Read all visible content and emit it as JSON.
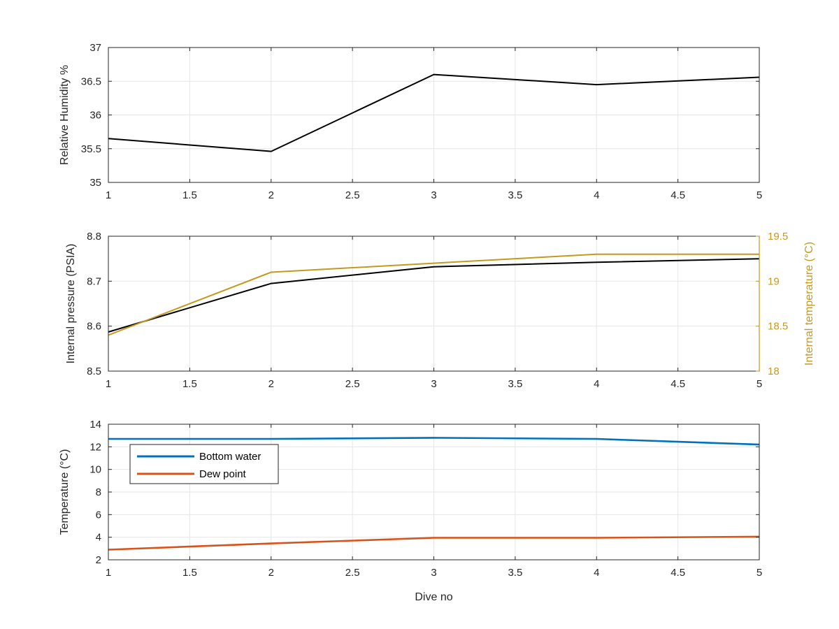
{
  "chart_data": [
    {
      "type": "line",
      "x": [
        1,
        2,
        3,
        4,
        5
      ],
      "xlim": [
        1,
        5
      ],
      "xticks": [
        "1",
        "1.5",
        "2",
        "2.5",
        "3",
        "3.5",
        "4",
        "4.5",
        "5"
      ],
      "xlabel": "",
      "ylabel": "Relative Humidity %",
      "ylim": [
        35,
        37
      ],
      "yticks": [
        "35",
        "35.5",
        "36",
        "36.5",
        "37"
      ],
      "grid": true,
      "series": [
        {
          "values": [
            35.65,
            35.46,
            36.6,
            36.45,
            36.56
          ],
          "color": "#000000"
        }
      ]
    },
    {
      "type": "line",
      "x": [
        1,
        2,
        3,
        4,
        5
      ],
      "xlim": [
        1,
        5
      ],
      "xticks": [
        "1",
        "1.5",
        "2",
        "2.5",
        "3",
        "3.5",
        "4",
        "4.5",
        "5"
      ],
      "xlabel": "",
      "ylabel": "Internal pressure (PSIA)",
      "ylim": [
        8.5,
        8.8
      ],
      "yticks": [
        "8.5",
        "8.6",
        "8.7",
        "8.8"
      ],
      "ylabel_right": "Internal temperature (°C)",
      "ylim_right": [
        18,
        19.5
      ],
      "yticks_right": [
        "18",
        "18.5",
        "19",
        "19.5"
      ],
      "right_axis_color": "#C49A1D",
      "grid": true,
      "series": [
        {
          "axis": "left",
          "values": [
            8.587,
            8.695,
            8.732,
            8.742,
            8.75
          ],
          "color": "#000000"
        },
        {
          "axis": "right",
          "values": [
            18.4,
            19.1,
            19.2,
            19.3,
            19.3
          ],
          "color": "#C49A1D"
        }
      ]
    },
    {
      "type": "line",
      "x": [
        1,
        2,
        3,
        4,
        5
      ],
      "xlim": [
        1,
        5
      ],
      "xticks": [
        "1",
        "1.5",
        "2",
        "2.5",
        "3",
        "3.5",
        "4",
        "4.5",
        "5"
      ],
      "xlabel": "Dive no",
      "ylabel": "Temperature (°C)",
      "ylim": [
        2,
        14
      ],
      "yticks": [
        "2",
        "4",
        "6",
        "8",
        "10",
        "12",
        "14"
      ],
      "grid": true,
      "legend_placement": "top-left",
      "series": [
        {
          "name": "Bottom water",
          "values": [
            12.7,
            12.7,
            12.8,
            12.7,
            12.2
          ],
          "color": "#0072BD"
        },
        {
          "name": "Dew point",
          "values": [
            2.9,
            3.45,
            3.95,
            3.95,
            4.05
          ],
          "color": "#D95319"
        }
      ]
    }
  ]
}
